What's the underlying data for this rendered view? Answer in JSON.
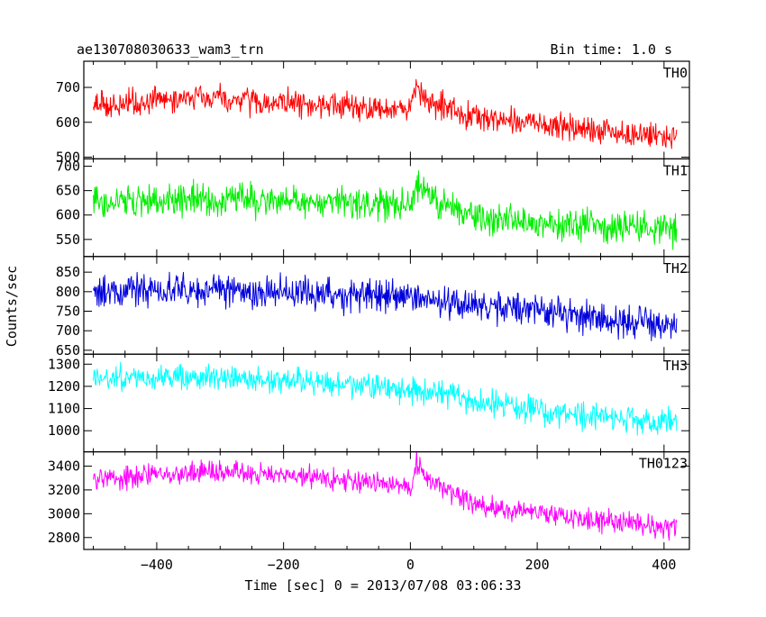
{
  "chart_data": {
    "type": "line",
    "title": "ae130708030633_wam3_trn",
    "subtitle": "Bin time: 1.0 s",
    "xlabel": "Time [sec] 0 = 2013/07/08 03:06:33",
    "ylabel": "Counts/sec",
    "xlim": [
      -515,
      440
    ],
    "x_ticks": [
      -400,
      -200,
      0,
      200,
      400
    ],
    "x_tick_labels": [
      "−400",
      "−200",
      "0",
      "200",
      "400"
    ],
    "x_range": [
      -500,
      420
    ],
    "bin_time": 1.0,
    "grid": false,
    "series": [
      {
        "name": "TH0",
        "color": "#ff0000",
        "ylim": [
          495,
          775
        ],
        "y_ticks": [
          500,
          600,
          700
        ],
        "y_tick_labels": [
          "500",
          "600",
          "700"
        ],
        "trend_x": [
          -500,
          -350,
          -200,
          -50,
          0,
          10,
          30,
          100,
          200,
          300,
          420
        ],
        "trend_y": [
          650,
          668,
          660,
          640,
          640,
          700,
          650,
          618,
          595,
          575,
          555
        ],
        "noise": 55
      },
      {
        "name": "TH1",
        "color": "#00ee00",
        "ylim": [
          515,
          715
        ],
        "y_ticks": [
          550,
          600,
          650,
          700
        ],
        "y_tick_labels": [
          "550",
          "600",
          "650",
          "700"
        ],
        "trend_x": [
          -500,
          -300,
          -100,
          0,
          10,
          40,
          100,
          200,
          420
        ],
        "trend_y": [
          625,
          632,
          625,
          620,
          660,
          625,
          600,
          585,
          570
        ],
        "noise": 48
      },
      {
        "name": "TH2",
        "color": "#0000dd",
        "ylim": [
          640,
          890
        ],
        "y_ticks": [
          650,
          700,
          750,
          800,
          850
        ],
        "y_tick_labels": [
          "650",
          "700",
          "750",
          "800",
          "850"
        ],
        "trend_x": [
          -500,
          -300,
          -100,
          0,
          100,
          200,
          300,
          420
        ],
        "trend_y": [
          800,
          805,
          790,
          782,
          770,
          750,
          728,
          715
        ],
        "noise": 60
      },
      {
        "name": "TH3",
        "color": "#00ffff",
        "ylim": [
          905,
          1345
        ],
        "y_ticks": [
          1000,
          1100,
          1200,
          1300
        ],
        "y_tick_labels": [
          "1000",
          "1100",
          "1200",
          "1300"
        ],
        "trend_x": [
          -500,
          -300,
          -100,
          0,
          100,
          200,
          300,
          420
        ],
        "trend_y": [
          1235,
          1240,
          1210,
          1180,
          1140,
          1090,
          1065,
          1040
        ],
        "noise": 85
      },
      {
        "name": "TH0123",
        "color": "#ff00ff",
        "ylim": [
          2700,
          3520
        ],
        "y_ticks": [
          2800,
          3000,
          3200,
          3400
        ],
        "y_tick_labels": [
          "2800",
          "3000",
          "3200",
          "3400"
        ],
        "trend_x": [
          -500,
          -300,
          -150,
          0,
          10,
          40,
          100,
          200,
          300,
          420
        ],
        "trend_y": [
          3300,
          3350,
          3300,
          3220,
          3410,
          3250,
          3070,
          3010,
          2940,
          2880
        ],
        "noise": 140
      }
    ]
  }
}
